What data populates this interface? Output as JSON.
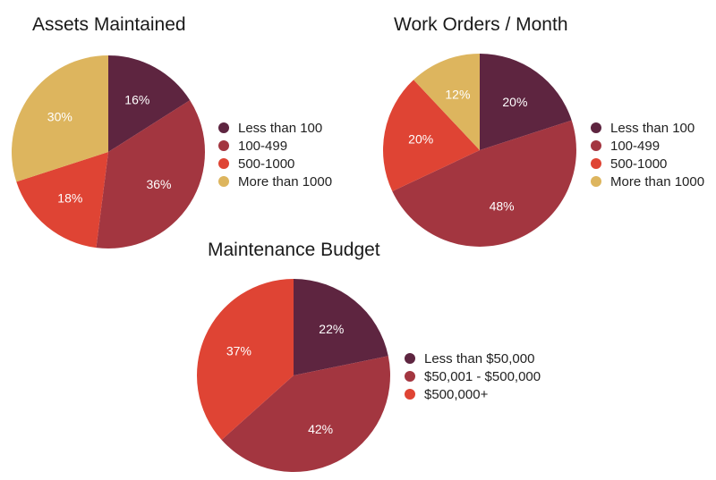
{
  "chart_data": [
    {
      "type": "pie",
      "title": "Assets Maintained",
      "slices": [
        {
          "label": "Less than 100",
          "value": 16,
          "display": "16%",
          "color": "#5e2540"
        },
        {
          "label": "100-499",
          "value": 36,
          "display": "36%",
          "color": "#a33640"
        },
        {
          "label": "500-1000",
          "value": 18,
          "display": "18%",
          "color": "#df4434"
        },
        {
          "label": "More than 1000",
          "value": 30,
          "display": "30%",
          "color": "#ddb55e"
        }
      ]
    },
    {
      "type": "pie",
      "title": "Work Orders / Month",
      "slices": [
        {
          "label": "Less than 100",
          "value": 20,
          "display": "20%",
          "color": "#5e2540"
        },
        {
          "label": "100-499",
          "value": 48,
          "display": "48%",
          "color": "#a33640"
        },
        {
          "label": "500-1000",
          "value": 20,
          "display": "20%",
          "color": "#df4434"
        },
        {
          "label": "More than 1000",
          "value": 12,
          "display": "12%",
          "color": "#ddb55e"
        }
      ]
    },
    {
      "type": "pie",
      "title": "Maintenance Budget",
      "slices": [
        {
          "label": "Less than $50,000",
          "value": 22,
          "display": "22%",
          "color": "#5e2540"
        },
        {
          "label": "$50,001 - $500,000",
          "value": 42,
          "display": "42%",
          "color": "#a33640"
        },
        {
          "label": "$500,000+",
          "value": 37,
          "display": "37%",
          "color": "#df4434"
        }
      ]
    }
  ]
}
